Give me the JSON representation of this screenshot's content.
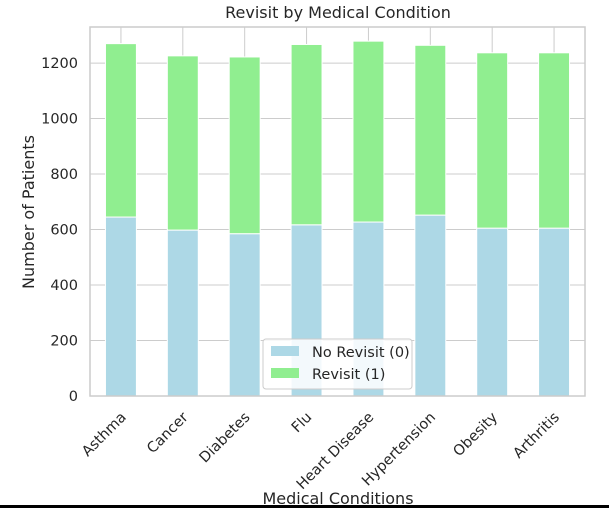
{
  "chart_data": {
    "type": "bar",
    "stacked": true,
    "title": "Revisit by Medical Condition",
    "xlabel": "Medical Conditions",
    "ylabel": "Number of Patients",
    "categories": [
      "Asthma",
      "Cancer",
      "Diabetes",
      "Flu",
      "Heart Disease",
      "Hypertension",
      "Obesity",
      "Arthritis"
    ],
    "series": [
      {
        "name": "No Revisit (0)",
        "color": "#add8e6",
        "values": [
          645,
          598,
          585,
          617,
          627,
          652,
          605,
          605
        ]
      },
      {
        "name": "Revisit (1)",
        "color": "#90ee90",
        "values": [
          625,
          628,
          637,
          650,
          652,
          612,
          632,
          632
        ]
      }
    ],
    "ylim": [
      0,
      1330
    ],
    "yticks": [
      0,
      200,
      400,
      600,
      800,
      1000,
      1200
    ],
    "grid": true,
    "legend_position": "bottom-center"
  }
}
